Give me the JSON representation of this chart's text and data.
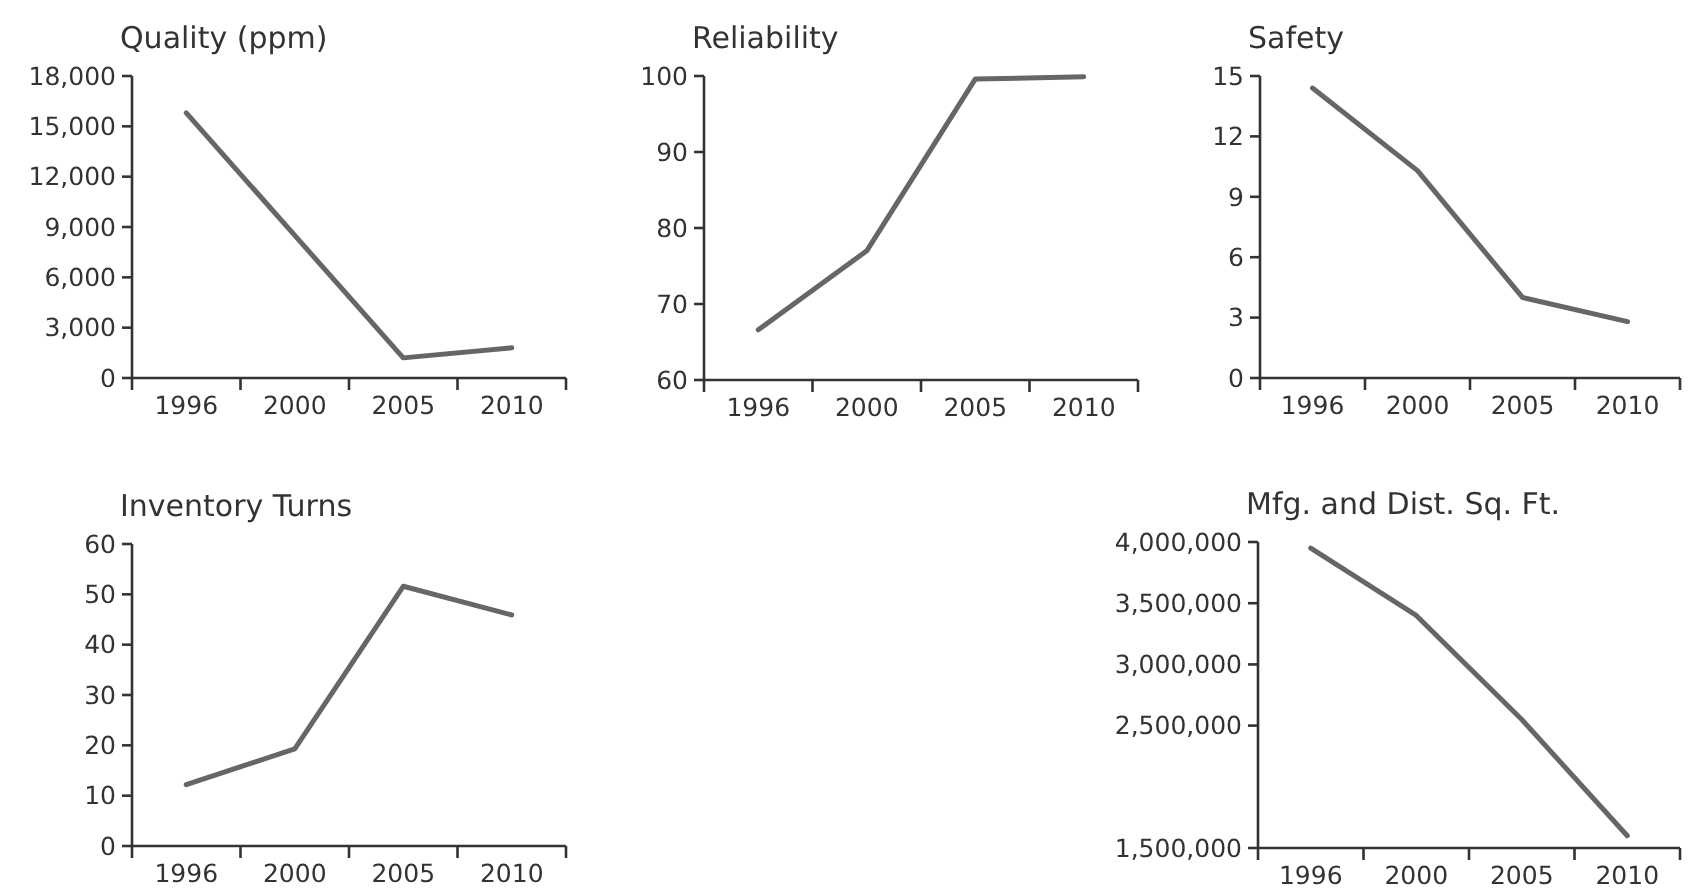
{
  "chart_data": [
    {
      "type": "line",
      "title": "Quality (ppm)",
      "categories": [
        "1996",
        "2000",
        "2005",
        "2010"
      ],
      "values": [
        15800,
        8500,
        1200,
        1800
      ],
      "color": "#666666",
      "ylim": [
        0,
        18000
      ],
      "yticks": [
        0,
        {
          "value": 3000,
          "label": "3,000"
        },
        {
          "value": 6000,
          "label": "6,000"
        },
        {
          "value": 9000,
          "label": "9,000"
        },
        {
          "value": 12000,
          "label": "12,000"
        },
        {
          "value": 15000,
          "label": "15,000"
        },
        {
          "value": 18000,
          "label": "18,000"
        }
      ]
    },
    {
      "type": "line",
      "title": "Reliability",
      "categories": [
        "1996",
        "2000",
        "2005",
        "2010"
      ],
      "values": [
        66.6,
        77.0,
        99.6,
        99.9
      ],
      "color": "#666666",
      "ylim": [
        60,
        100
      ],
      "yticks": [
        60,
        70,
        80,
        90,
        100
      ]
    },
    {
      "type": "line",
      "title": "Safety",
      "categories": [
        "1996",
        "2000",
        "2005",
        "2010"
      ],
      "values": [
        14.4,
        10.3,
        4.0,
        2.8
      ],
      "color": "#666666",
      "ylim": [
        0,
        15
      ],
      "yticks": [
        0,
        3,
        6,
        9,
        12,
        15
      ]
    },
    {
      "type": "line",
      "title": "Inventory Turns",
      "categories": [
        "1996",
        "2000",
        "2005",
        "2010"
      ],
      "values": [
        12.2,
        19.3,
        51.6,
        45.9
      ],
      "color": "#666666",
      "ylim": [
        0,
        60
      ],
      "yticks": [
        0,
        10,
        20,
        30,
        40,
        50,
        60
      ]
    },
    {
      "type": "line",
      "title": "Mfg. and Dist. Sq. Ft.",
      "categories": [
        "1996",
        "2000",
        "2005",
        "2010"
      ],
      "values": [
        3950000,
        3400000,
        2550000,
        1600000
      ],
      "color": "#666666",
      "ylim": [
        1500000,
        4000000
      ],
      "yticks": [
        {
          "value": 1500000,
          "label": "1,500,000"
        },
        {
          "value": 2500000,
          "label": "2,500,000"
        },
        {
          "value": 3000000,
          "label": "3,000,000"
        },
        {
          "value": 3500000,
          "label": "3,500,000"
        },
        {
          "value": 4000000,
          "label": "4,000,000"
        }
      ]
    }
  ]
}
